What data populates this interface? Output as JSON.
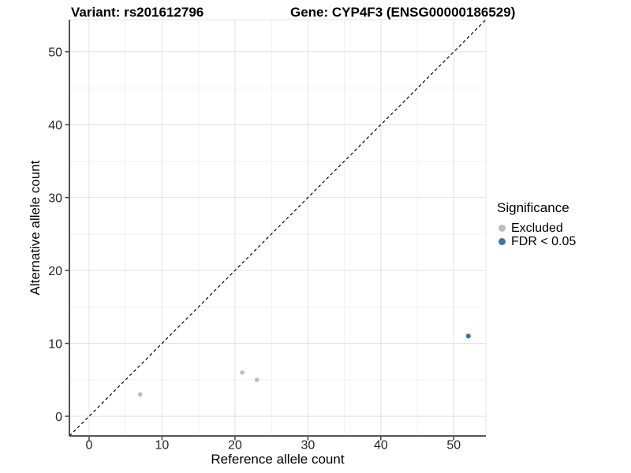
{
  "chart_data": {
    "type": "scatter",
    "titles": [
      "Variant: rs201612796",
      "Gene: CYP4F3 (ENSG00000186529)"
    ],
    "xlabel": "Reference allele count",
    "ylabel": "Alternative allele count",
    "xlim": [
      -2.7,
      54.4
    ],
    "ylim": [
      -2.7,
      54.4
    ],
    "xticks": [
      0,
      10,
      20,
      30,
      40,
      50
    ],
    "yticks": [
      0,
      10,
      20,
      30,
      40,
      50
    ],
    "minor_ticks": [
      5,
      15,
      25,
      35,
      45
    ],
    "grid": "major+minor",
    "identity_line": {
      "style": "dashed",
      "color": "#000000"
    },
    "legend": {
      "title": "Significance",
      "position": "right"
    },
    "series": [
      {
        "name": "Excluded",
        "color": "#bcbcbc",
        "point_radius": 2.8,
        "points": [
          [
            7,
            3
          ],
          [
            21,
            6
          ],
          [
            23,
            5
          ]
        ]
      },
      {
        "name": "FDR < 0.05",
        "color": "#3e74af",
        "point_radius": 3.1,
        "points": [
          [
            52,
            11
          ]
        ]
      }
    ]
  },
  "colors": {
    "axis_line": "#3f3f3f",
    "tick_mark": "#3f3f3f",
    "grid_major": "#e4e4e4",
    "grid_minor": "#f1f1f1",
    "panel_border": "#e4e4e4",
    "tick_label": "#262626"
  }
}
